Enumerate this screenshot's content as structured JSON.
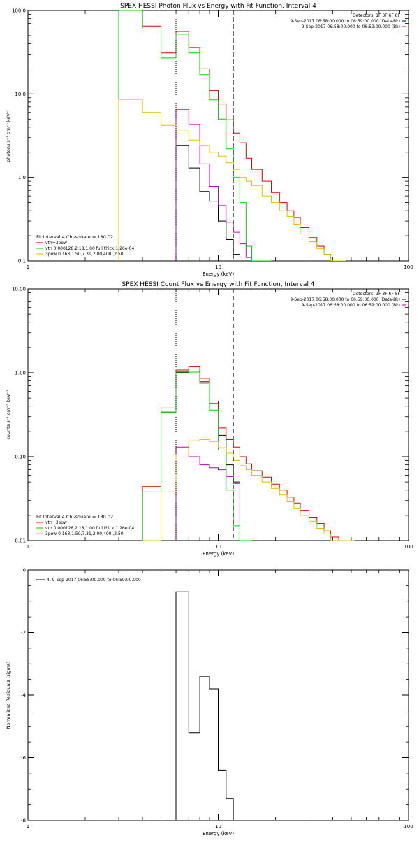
{
  "chart_data": [
    {
      "type": "line",
      "title": "SPEX HESSI Photon Flux vs Energy with Fit Function, Interval 4",
      "xlabel": "Energy (keV)",
      "ylabel": "photons s⁻¹ cm⁻² keV⁻¹",
      "xscale": "log",
      "yscale": "log",
      "xlim": [
        1,
        100
      ],
      "ylim": [
        0.1,
        100
      ],
      "x_ticks": [
        {
          "v": 1,
          "label": "1"
        },
        {
          "v": 10,
          "label": "10"
        },
        {
          "v": 100,
          "label": "100"
        }
      ],
      "y_ticks": [
        {
          "v": 0.1,
          "label": "0.1"
        },
        {
          "v": 1,
          "label": "1.0"
        },
        {
          "v": 10,
          "label": "10.0"
        },
        {
          "v": 100,
          "label": "100.0"
        }
      ],
      "info_lines": [
        "Detectors: 1F 3F 6F 8F",
        "9-Sep-2017 06:58:00.000 to 06:59:00.000 (Data-Bk)",
        "9-Sep-2017 06:58:00.000 to 06:59:00.000 (Bk)"
      ],
      "info_colors": [
        "#000000",
        "#000000",
        "#c000c0"
      ],
      "fit_label": "Fit Interval 4   Chi-square = 180.02",
      "legend": [
        {
          "label": "vth+3pow",
          "color": "#e00000"
        },
        {
          "label": "vth 0.000128,2.18,1.00  full thick 1.26e-04",
          "color": "#00d000"
        },
        {
          "label": "3pow 0.163,1.50,7.31,2.00,400.,2.50",
          "color": "#e0c000"
        }
      ],
      "vlines": [
        {
          "x": 6.0,
          "style": "dotted"
        },
        {
          "x": 12.0,
          "style": "dashed"
        }
      ],
      "edges": [
        3,
        4,
        5,
        6,
        7,
        8,
        9,
        10,
        11,
        12,
        13,
        14,
        15,
        17,
        19,
        21,
        23,
        25,
        27,
        30,
        33,
        36,
        39,
        43,
        47
      ],
      "series": [
        {
          "name": "Data-Bk",
          "color": "#000000",
          "values": [
            null,
            null,
            null,
            2.4,
            1.3,
            0.68,
            0.52,
            0.3,
            0.18,
            0.12,
            0.08,
            null
          ]
        },
        {
          "name": "Bk",
          "color": "#c000c0",
          "values": [
            null,
            null,
            null,
            6.5,
            4.3,
            1.45,
            0.78,
            0.46,
            0.29,
            0.22,
            0.16,
            0.11
          ]
        },
        {
          "name": "vth+3pow",
          "color": "#e00000",
          "values": [
            100,
            65,
            31,
            56,
            36,
            20,
            11,
            7.6,
            4.9,
            3.4,
            2.6,
            1.7,
            1.25,
            0.9,
            0.66,
            0.5,
            0.4,
            0.33,
            0.25,
            0.19,
            0.15,
            0.12,
            0.1,
            0.09
          ]
        },
        {
          "name": "vth",
          "color": "#00d000",
          "values": [
            100,
            60,
            27,
            52,
            31,
            17,
            8.5,
            5.0,
            2.2,
            1.0,
            0.5,
            0.15,
            0.1,
            0.1
          ]
        },
        {
          "name": "3pow",
          "color": "#e0c000",
          "values": [
            8.6,
            6.0,
            4.2,
            3.6,
            2.8,
            2.4,
            2.0,
            1.8,
            1.5,
            1.25,
            1.0,
            0.9,
            0.8,
            0.6,
            0.5,
            0.4,
            0.34,
            0.27,
            0.21,
            0.17,
            0.14,
            0.12,
            0.1,
            0.09
          ]
        }
      ]
    },
    {
      "type": "line",
      "title": "SPEX HESSI Count Flux vs Energy with Fit Function, Interval 4",
      "xlabel": "Energy (keV)",
      "ylabel": "counts s⁻¹ cm⁻² keV⁻¹",
      "xscale": "log",
      "yscale": "log",
      "xlim": [
        1,
        100
      ],
      "ylim": [
        0.01,
        10
      ],
      "x_ticks": [
        {
          "v": 1,
          "label": "1"
        },
        {
          "v": 10,
          "label": "10"
        },
        {
          "v": 100,
          "label": "100"
        }
      ],
      "y_ticks": [
        {
          "v": 0.01,
          "label": "0.01"
        },
        {
          "v": 0.1,
          "label": "0.10"
        },
        {
          "v": 1,
          "label": "1.00"
        },
        {
          "v": 10,
          "label": "10.00"
        }
      ],
      "info_lines": [
        "Detectors: 1F 3F 6F 8F",
        "9-Sep-2017 06:58:00.000 to 06:59:00.000 (Data-Bk)",
        "9-Sep-2017 06:58:00.000 to 06:59:00.000 (Bk)"
      ],
      "info_colors": [
        "#000000",
        "#000000",
        "#c000c0"
      ],
      "fit_label": "Fit Interval 4   Chi-square = 180.02",
      "legend": [
        {
          "label": "vth+3pow",
          "color": "#e00000"
        },
        {
          "label": "vth 0.000128,2.18,1.00  full thick 1.26e-04",
          "color": "#00d000"
        },
        {
          "label": "3pow 0.163,1.50,7.31,2.00,400.,2.50",
          "color": "#e0c000"
        }
      ],
      "vlines": [
        {
          "x": 6.0,
          "style": "dotted"
        },
        {
          "x": 12.0,
          "style": "dashed"
        }
      ],
      "edges": [
        4,
        5,
        6,
        7,
        8,
        9,
        10,
        11,
        12,
        13,
        14,
        15,
        17,
        19,
        21,
        23,
        25,
        27,
        30,
        33,
        36,
        39,
        43,
        47,
        52
      ],
      "series": [
        {
          "name": "Data-Bk",
          "color": "#000000",
          "values": [
            null,
            0.34,
            1.02,
            1.05,
            0.78,
            0.43,
            0.18,
            0.08,
            0.05,
            null
          ]
        },
        {
          "name": "Bk",
          "color": "#c000c0",
          "values": [
            null,
            null,
            0.13,
            0.1,
            0.08,
            0.074,
            0.07,
            0.058,
            0.048,
            0.01
          ]
        },
        {
          "name": "vth+3pow",
          "color": "#e00000",
          "values": [
            0.044,
            0.38,
            1.08,
            1.18,
            0.86,
            0.46,
            0.22,
            0.16,
            0.13,
            0.1,
            0.082,
            0.068,
            0.057,
            0.047,
            0.04,
            0.033,
            0.028,
            0.023,
            0.019,
            0.016,
            0.013,
            0.011,
            0.01,
            0.01
          ]
        },
        {
          "name": "vth",
          "color": "#00d000",
          "values": [
            0.038,
            0.34,
            1.0,
            1.02,
            0.75,
            0.36,
            0.12,
            0.04,
            0.015,
            0.01,
            0.01
          ]
        },
        {
          "name": "3pow",
          "color": "#e0c000",
          "values": [
            0.01,
            0.038,
            0.105,
            0.155,
            0.16,
            0.152,
            0.128,
            0.11,
            0.09,
            0.078,
            0.07,
            0.06,
            0.05,
            0.042,
            0.035,
            0.029,
            0.024,
            0.02,
            0.017,
            0.014,
            0.012,
            0.01,
            0.01,
            0.01
          ]
        }
      ]
    },
    {
      "type": "line",
      "title": "",
      "xlabel": "Energy (keV)",
      "ylabel": "Normalized Residuals (sigma)",
      "xscale": "log",
      "yscale": "linear",
      "xlim": [
        1,
        100
      ],
      "ylim": [
        -8,
        0
      ],
      "x_ticks": [
        {
          "v": 1,
          "label": "1"
        },
        {
          "v": 10,
          "label": "10"
        },
        {
          "v": 100,
          "label": "100"
        }
      ],
      "y_ticks": [
        {
          "v": -8,
          "label": "-8"
        },
        {
          "v": -6,
          "label": "-6"
        },
        {
          "v": -4,
          "label": "-4"
        },
        {
          "v": -2,
          "label": "-2"
        },
        {
          "v": 0,
          "label": "0"
        }
      ],
      "legend": [
        {
          "label": "4,  9-Sep-2017 06:58:00.000 to 06:59:00.000",
          "color": "#000000"
        }
      ],
      "edges": [
        6,
        7,
        8,
        9,
        10,
        11,
        12
      ],
      "series": [
        {
          "name": "4,  9-Sep-2017 06:58:00.000 to 06:59:00.000",
          "color": "#000000",
          "values": [
            -0.7,
            -5.2,
            -3.4,
            -3.8,
            -6.4,
            -7.3
          ],
          "closed": true
        }
      ]
    }
  ]
}
